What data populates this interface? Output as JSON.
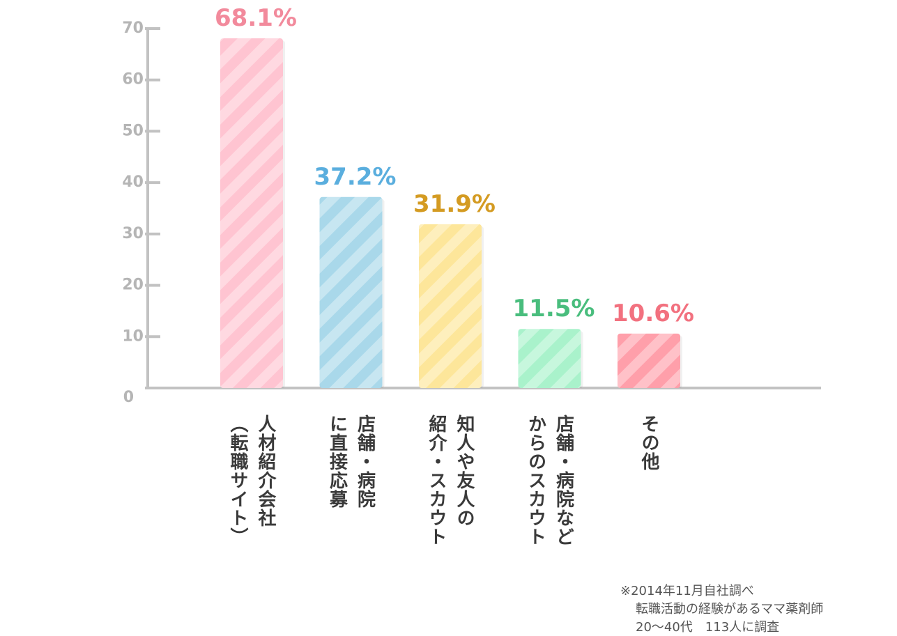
{
  "chart_data": {
    "type": "bar",
    "categories": [
      "人材紹介会社\n（転職サイト）",
      "店舗・病院\nに直接応募",
      "知人や友人の\n紹介・スカウト",
      "店舗・病院など\nからのスカウト",
      "その他"
    ],
    "values": [
      68.1,
      37.2,
      31.9,
      11.5,
      10.6
    ],
    "value_labels": [
      "68.1%",
      "37.2%",
      "31.9%",
      "11.5%",
      "10.6%"
    ],
    "colors": [
      "#ffc4d1",
      "#a9d8ea",
      "#fde69a",
      "#a9f2cb",
      "#ff9faa"
    ],
    "label_colors": [
      "#f28a9c",
      "#5aaede",
      "#d49b22",
      "#49bd7d",
      "#f2717f"
    ],
    "ylim": [
      0,
      70
    ],
    "yticks": [
      0,
      10,
      20,
      30,
      40,
      50,
      60,
      70
    ],
    "note": [
      "※2014年11月自社調べ",
      "転職活動の経験があるママ薬剤師",
      "20～40代　113人に調査"
    ]
  }
}
